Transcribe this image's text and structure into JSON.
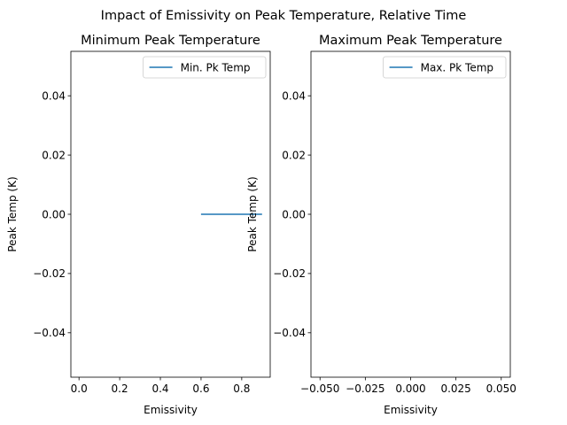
{
  "figure": {
    "suptitle": "Impact of Emissivity on Peak Temperature, Relative Time",
    "line_color": "#1f77b4"
  },
  "chart_data": [
    {
      "type": "line",
      "title": "Minimum Peak Temperature",
      "xlabel": "Emissivity",
      "ylabel": "Peak Temp (K)",
      "xlim": [
        -0.04,
        0.94
      ],
      "ylim": [
        -0.055,
        0.055
      ],
      "xticks": [
        0.0,
        0.2,
        0.4,
        0.6,
        0.8
      ],
      "xtick_labels": [
        "0.0",
        "0.2",
        "0.4",
        "0.6",
        "0.8"
      ],
      "yticks": [
        0.04,
        0.02,
        0.0,
        -0.02,
        -0.04
      ],
      "ytick_labels": [
        "0.04",
        "0.02",
        "0.00",
        "−0.02",
        "−0.04"
      ],
      "series": [
        {
          "name": "Min. Pk Temp",
          "x": [
            0.6,
            0.7,
            0.8,
            0.9
          ],
          "y": [
            0,
            0,
            0,
            0
          ]
        }
      ],
      "legend": {
        "location": "top-right",
        "entries": [
          "Min. Pk Temp"
        ]
      }
    },
    {
      "type": "line",
      "title": "Maximum Peak Temperature",
      "xlabel": "Emissivity",
      "ylabel": "Peak Temp (K)",
      "xlim": [
        -0.055,
        0.055
      ],
      "ylim": [
        -0.055,
        0.055
      ],
      "xticks": [
        -0.05,
        -0.025,
        0.0,
        0.025,
        0.05
      ],
      "xtick_labels": [
        "−0.050",
        "−0.025",
        "0.000",
        "0.025",
        "0.050"
      ],
      "yticks": [
        0.04,
        0.02,
        0.0,
        -0.02,
        -0.04
      ],
      "ytick_labels": [
        "0.04",
        "0.02",
        "0.00",
        "−0.02",
        "−0.04"
      ],
      "series": [
        {
          "name": "Max. Pk Temp",
          "x": [],
          "y": []
        }
      ],
      "legend": {
        "location": "top-right",
        "entries": [
          "Max. Pk Temp"
        ]
      }
    }
  ]
}
